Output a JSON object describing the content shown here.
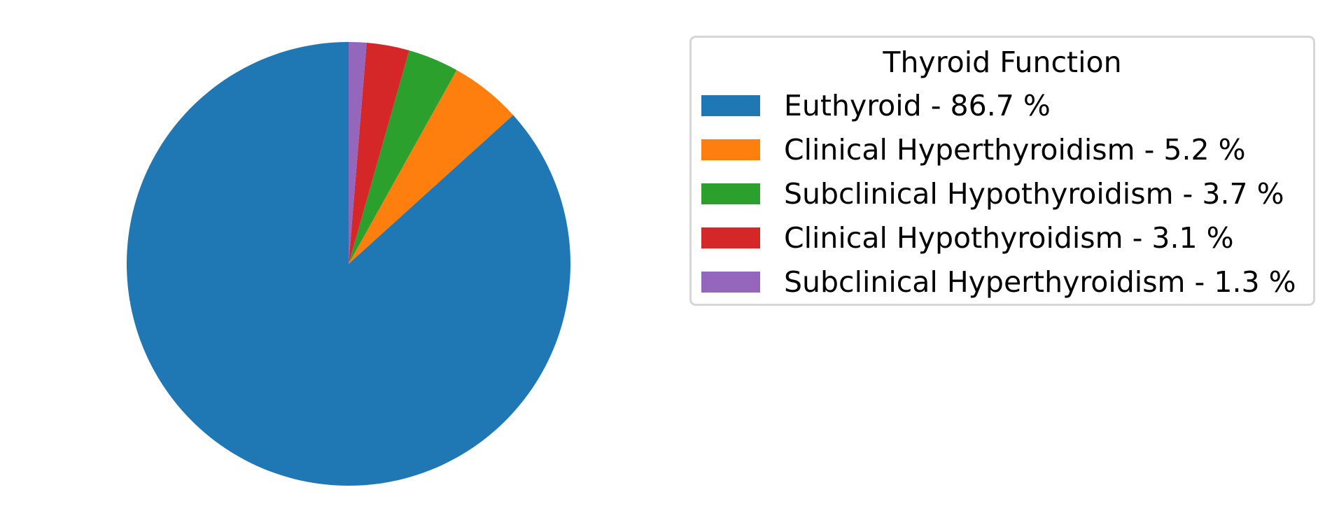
{
  "chart_data": {
    "type": "pie",
    "title": "",
    "legend_title": "Thyroid Function",
    "legend_placement": "right",
    "start_angle_deg": 90,
    "direction": "counterclockwise",
    "slices": [
      {
        "label": "Euthyroid - 86.7 %",
        "value": 86.7,
        "color": "#1f77b4"
      },
      {
        "label": "Clinical Hyperthyroidism - 5.2 %",
        "value": 5.2,
        "color": "#ff7f0e"
      },
      {
        "label": "Subclinical Hypothyroidism - 3.7 %",
        "value": 3.7,
        "color": "#2ca02c"
      },
      {
        "label": "Clinical Hypothyroidism - 3.1 %",
        "value": 3.1,
        "color": "#d62728"
      },
      {
        "label": "Subclinical Hyperthyroidism - 1.3 %",
        "value": 1.3,
        "color": "#9467bd"
      }
    ]
  }
}
